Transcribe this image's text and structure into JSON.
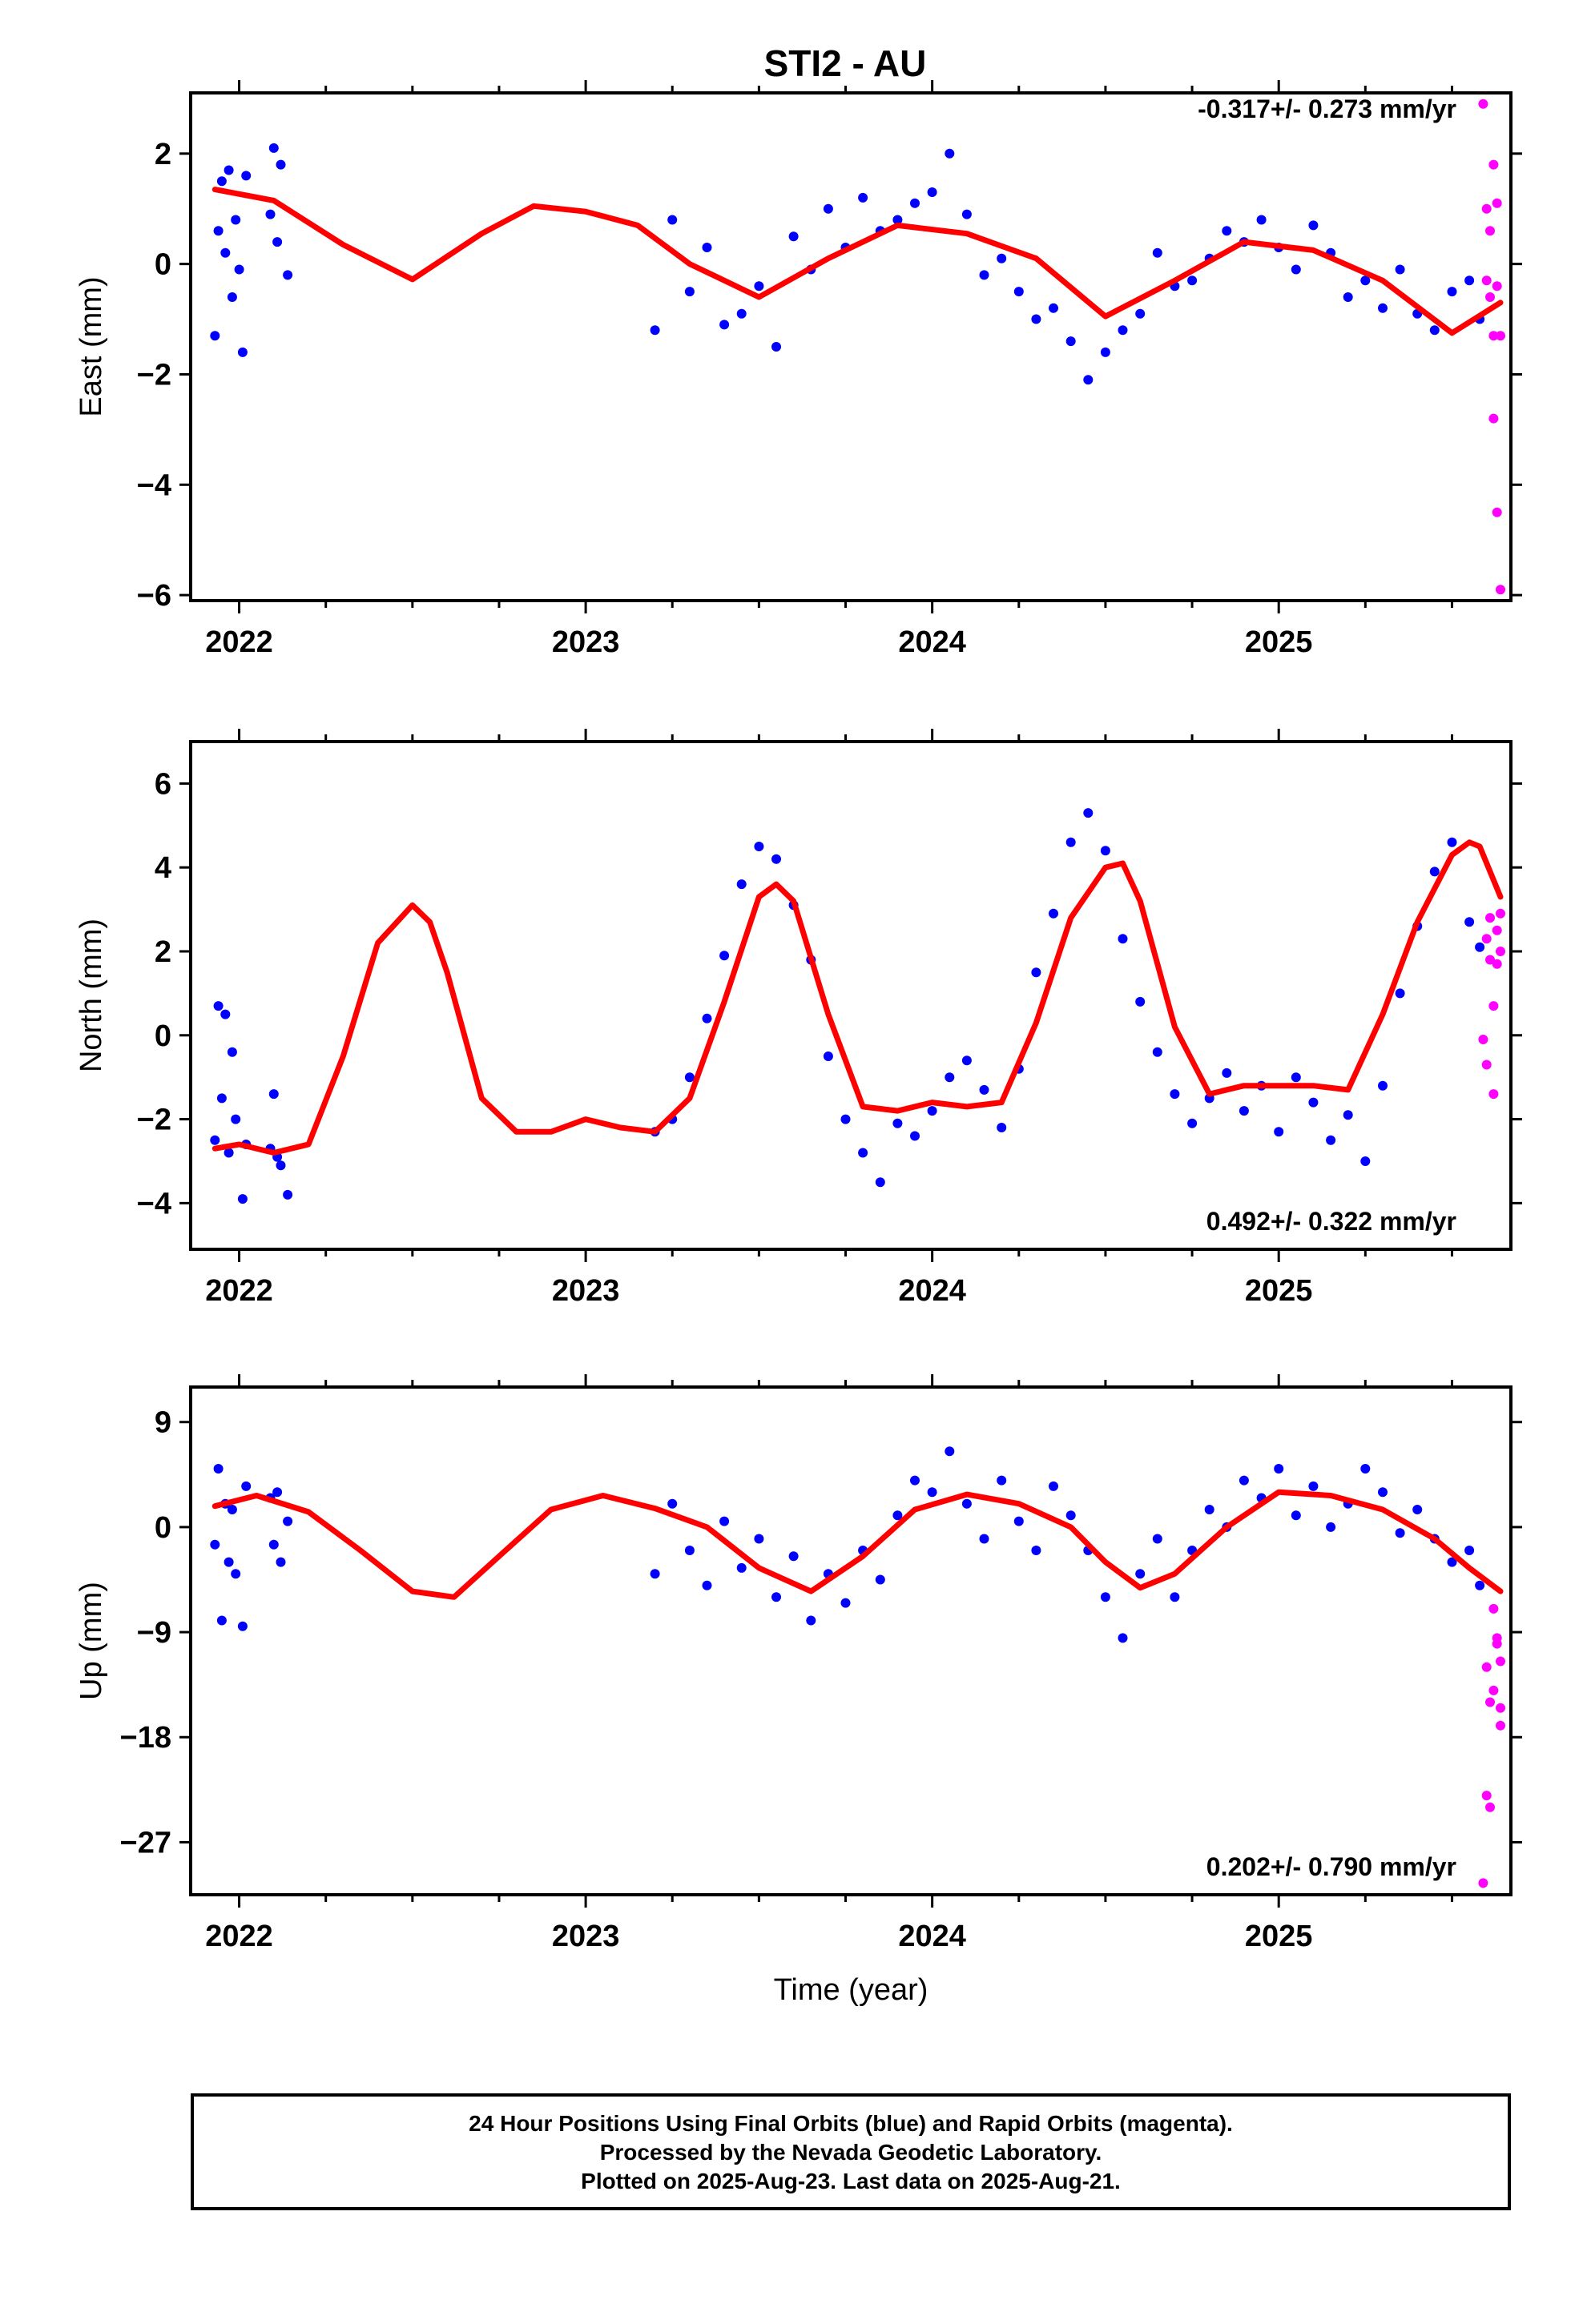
{
  "title": "STI2 - AU",
  "xlabel": "Time (year)",
  "caption": {
    "line1": "24 Hour Positions Using Final Orbits (blue) and Rapid Orbits (magenta).",
    "line2": "Processed by the Nevada Geodetic Laboratory.",
    "line3": "Plotted on 2025-Aug-23. Last data on 2025-Aug-21."
  },
  "colors": {
    "final": "#0000ff",
    "rapid": "#ff00ff",
    "fit": "#ff0000",
    "axes": "#000000"
  },
  "chart_data": [
    {
      "type": "scatter",
      "ylabel": "East (mm)",
      "rate_label": "-0.317+/- 0.273 mm/yr",
      "xlim": [
        2021.86,
        2025.67
      ],
      "ylim": [
        -6.1,
        3.1
      ],
      "yticks": [
        "2",
        "0",
        "−2",
        "−4",
        "−6"
      ],
      "ytick_values": [
        2,
        0,
        -2,
        -4,
        -6
      ],
      "xticks": [
        "2022",
        "2023",
        "2024",
        "2025"
      ],
      "xtick_values": [
        2022,
        2023,
        2024,
        2025
      ],
      "series": [
        {
          "type": "scatter",
          "color": "#0000ff",
          "x": [
            2021.93,
            2021.94,
            2021.95,
            2021.96,
            2021.97,
            2021.98,
            2021.99,
            2022.0,
            2022.01,
            2022.02,
            2022.09,
            2022.1,
            2022.11,
            2022.12,
            2022.14,
            2023.2,
            2023.25,
            2023.3,
            2023.35,
            2023.4,
            2023.45,
            2023.5,
            2023.55,
            2023.6,
            2023.65,
            2023.7,
            2023.75,
            2023.8,
            2023.85,
            2023.9,
            2023.95,
            2024.0,
            2024.05,
            2024.1,
            2024.15,
            2024.2,
            2024.25,
            2024.3,
            2024.35,
            2024.4,
            2024.45,
            2024.5,
            2024.55,
            2024.6,
            2024.65,
            2024.7,
            2024.75,
            2024.8,
            2024.85,
            2024.9,
            2024.95,
            2025.0,
            2025.05,
            2025.1,
            2025.15,
            2025.2,
            2025.25,
            2025.3,
            2025.35,
            2025.4,
            2025.45,
            2025.5,
            2025.55,
            2025.58
          ],
          "y": [
            -1.3,
            0.6,
            1.5,
            0.2,
            1.7,
            -0.6,
            0.8,
            -0.1,
            -1.6,
            1.6,
            0.9,
            2.1,
            0.4,
            1.8,
            -0.2,
            -1.2,
            0.8,
            -0.5,
            0.3,
            -1.1,
            -0.9,
            -0.4,
            -1.5,
            0.5,
            -0.1,
            1.0,
            0.3,
            1.2,
            0.6,
            0.8,
            1.1,
            1.3,
            2.0,
            0.9,
            -0.2,
            0.1,
            -0.5,
            -1.0,
            -0.8,
            -1.4,
            -2.1,
            -1.6,
            -1.2,
            -0.9,
            0.2,
            -0.4,
            -0.3,
            0.1,
            0.6,
            0.4,
            0.8,
            0.3,
            -0.1,
            0.7,
            0.2,
            -0.6,
            -0.3,
            -0.8,
            -0.1,
            -0.9,
            -1.2,
            -0.5,
            -0.3,
            -1.0
          ]
        },
        {
          "type": "scatter",
          "color": "#ff00ff",
          "x": [
            2025.59,
            2025.6,
            2025.6,
            2025.61,
            2025.61,
            2025.62,
            2025.62,
            2025.62,
            2025.63,
            2025.63,
            2025.63,
            2025.64,
            2025.64
          ],
          "y": [
            2.9,
            -0.3,
            1.0,
            0.6,
            -0.6,
            -1.3,
            -2.8,
            1.8,
            -0.4,
            -4.5,
            1.1,
            -5.9,
            -1.3
          ]
        },
        {
          "type": "line",
          "color": "#ff0000",
          "x": [
            2021.93,
            2022.1,
            2022.3,
            2022.5,
            2022.7,
            2022.85,
            2023.0,
            2023.15,
            2023.3,
            2023.5,
            2023.7,
            2023.9,
            2024.1,
            2024.3,
            2024.5,
            2024.7,
            2024.9,
            2025.1,
            2025.3,
            2025.5,
            2025.64
          ],
          "y": [
            1.35,
            1.15,
            0.35,
            -0.28,
            0.55,
            1.05,
            0.95,
            0.7,
            0.0,
            -0.6,
            0.1,
            0.7,
            0.55,
            0.1,
            -0.95,
            -0.3,
            0.4,
            0.25,
            -0.3,
            -1.25,
            -0.7
          ]
        }
      ]
    },
    {
      "type": "scatter",
      "ylabel": "North (mm)",
      "rate_label": "0.492+/- 0.322 mm/yr",
      "xlim": [
        2021.86,
        2025.67
      ],
      "ylim": [
        -5.1,
        7.0
      ],
      "yticks": [
        "6",
        "4",
        "2",
        "0",
        "−2",
        "−4"
      ],
      "ytick_values": [
        6,
        4,
        2,
        0,
        -2,
        -4
      ],
      "xticks": [
        "2022",
        "2023",
        "2024",
        "2025"
      ],
      "xtick_values": [
        2022,
        2023,
        2024,
        2025
      ],
      "series": [
        {
          "type": "scatter",
          "color": "#0000ff",
          "x": [
            2021.93,
            2021.94,
            2021.95,
            2021.96,
            2021.97,
            2021.98,
            2021.99,
            2022.01,
            2022.02,
            2022.09,
            2022.1,
            2022.11,
            2022.12,
            2022.14,
            2023.2,
            2023.25,
            2023.3,
            2023.35,
            2023.4,
            2023.45,
            2023.5,
            2023.55,
            2023.6,
            2023.65,
            2023.7,
            2023.75,
            2023.8,
            2023.85,
            2023.9,
            2023.95,
            2024.0,
            2024.05,
            2024.1,
            2024.15,
            2024.2,
            2024.25,
            2024.3,
            2024.35,
            2024.4,
            2024.45,
            2024.5,
            2024.55,
            2024.6,
            2024.65,
            2024.7,
            2024.75,
            2024.8,
            2024.85,
            2024.9,
            2024.95,
            2025.0,
            2025.05,
            2025.1,
            2025.15,
            2025.2,
            2025.25,
            2025.3,
            2025.35,
            2025.4,
            2025.45,
            2025.5,
            2025.55,
            2025.58
          ],
          "y": [
            -2.5,
            0.7,
            -1.5,
            0.5,
            -2.8,
            -0.4,
            -2.0,
            -3.9,
            -2.6,
            -2.7,
            -1.4,
            -2.9,
            -3.1,
            -3.8,
            -2.3,
            -2.0,
            -1.0,
            0.4,
            1.9,
            3.6,
            4.5,
            4.2,
            3.1,
            1.8,
            -0.5,
            -2.0,
            -2.8,
            -3.5,
            -2.1,
            -2.4,
            -1.8,
            -1.0,
            -0.6,
            -1.3,
            -2.2,
            -0.8,
            1.5,
            2.9,
            4.6,
            5.3,
            4.4,
            2.3,
            0.8,
            -0.4,
            -1.4,
            -2.1,
            -1.5,
            -0.9,
            -1.8,
            -1.2,
            -2.3,
            -1.0,
            -1.6,
            -2.5,
            -1.9,
            -3.0,
            -1.2,
            1.0,
            2.6,
            3.9,
            4.6,
            2.7,
            2.1
          ]
        },
        {
          "type": "scatter",
          "color": "#ff00ff",
          "x": [
            2025.59,
            2025.6,
            2025.6,
            2025.61,
            2025.61,
            2025.62,
            2025.62,
            2025.63,
            2025.63,
            2025.64,
            2025.64
          ],
          "y": [
            -0.1,
            -0.7,
            2.3,
            1.8,
            2.8,
            -1.4,
            0.7,
            2.5,
            1.7,
            2.9,
            2.0
          ]
        },
        {
          "type": "line",
          "color": "#ff0000",
          "x": [
            2021.93,
            2022.0,
            2022.1,
            2022.2,
            2022.3,
            2022.4,
            2022.5,
            2022.55,
            2022.6,
            2022.7,
            2022.8,
            2022.9,
            2023.0,
            2023.1,
            2023.2,
            2023.3,
            2023.4,
            2023.5,
            2023.55,
            2023.6,
            2023.7,
            2023.8,
            2023.9,
            2024.0,
            2024.1,
            2024.2,
            2024.3,
            2024.4,
            2024.5,
            2024.55,
            2024.6,
            2024.7,
            2024.8,
            2024.9,
            2025.0,
            2025.1,
            2025.2,
            2025.3,
            2025.4,
            2025.5,
            2025.55,
            2025.58,
            2025.64
          ],
          "y": [
            -2.7,
            -2.6,
            -2.8,
            -2.6,
            -0.5,
            2.2,
            3.1,
            2.7,
            1.5,
            -1.5,
            -2.3,
            -2.3,
            -2.0,
            -2.2,
            -2.3,
            -1.5,
            0.8,
            3.3,
            3.6,
            3.2,
            0.5,
            -1.7,
            -1.8,
            -1.6,
            -1.7,
            -1.6,
            0.3,
            2.8,
            4.0,
            4.1,
            3.2,
            0.2,
            -1.4,
            -1.2,
            -1.2,
            -1.2,
            -1.3,
            0.5,
            2.7,
            4.3,
            4.6,
            4.5,
            3.3
          ]
        }
      ]
    },
    {
      "type": "scatter",
      "ylabel": "Up (mm)",
      "rate_label": "0.202+/- 0.790 mm/yr",
      "xlim": [
        2021.86,
        2025.67
      ],
      "ylim": [
        -31.5,
        12.0
      ],
      "yticks": [
        "9",
        "0",
        "−9",
        "−18",
        "−27"
      ],
      "ytick_values": [
        9,
        0,
        -9,
        -18,
        -27
      ],
      "xticks": [
        "2022",
        "2023",
        "2024",
        "2025"
      ],
      "xtick_values": [
        2022,
        2023,
        2024,
        2025
      ],
      "series": [
        {
          "type": "scatter",
          "color": "#0000ff",
          "x": [
            2021.93,
            2021.94,
            2021.95,
            2021.96,
            2021.97,
            2021.98,
            2021.99,
            2022.01,
            2022.02,
            2022.09,
            2022.1,
            2022.11,
            2022.12,
            2022.14,
            2023.2,
            2023.25,
            2023.3,
            2023.35,
            2023.4,
            2023.45,
            2023.5,
            2023.55,
            2023.6,
            2023.65,
            2023.7,
            2023.75,
            2023.8,
            2023.85,
            2023.9,
            2023.95,
            2024.0,
            2024.05,
            2024.1,
            2024.15,
            2024.2,
            2024.25,
            2024.3,
            2024.35,
            2024.4,
            2024.45,
            2024.5,
            2024.55,
            2024.6,
            2024.65,
            2024.7,
            2024.75,
            2024.8,
            2024.85,
            2024.9,
            2024.95,
            2025.0,
            2025.05,
            2025.1,
            2025.15,
            2025.2,
            2025.25,
            2025.3,
            2025.35,
            2025.4,
            2025.45,
            2025.5,
            2025.55,
            2025.58
          ],
          "y": [
            -1.5,
            5.0,
            -8.0,
            2.0,
            -3.0,
            1.5,
            -4.0,
            -8.5,
            3.5,
            2.5,
            -1.5,
            3.0,
            -3.0,
            0.5,
            -4.0,
            2.0,
            -2.0,
            -5.0,
            0.5,
            -3.5,
            -1.0,
            -6.0,
            -2.5,
            -8.0,
            -4.0,
            -6.5,
            -2.0,
            -4.5,
            1.0,
            4.0,
            3.0,
            6.5,
            2.0,
            -1.0,
            4.0,
            0.5,
            -2.0,
            3.5,
            1.0,
            -2.0,
            -6.0,
            -9.5,
            -4.0,
            -1.0,
            -6.0,
            -2.0,
            1.5,
            0.0,
            4.0,
            2.5,
            5.0,
            1.0,
            3.5,
            0.0,
            2.0,
            5.0,
            3.0,
            -0.5,
            1.5,
            -1.0,
            -3.0,
            -2.0,
            -5.0
          ]
        },
        {
          "type": "scatter",
          "color": "#ff00ff",
          "x": [
            2025.59,
            2025.6,
            2025.6,
            2025.61,
            2025.61,
            2025.62,
            2025.62,
            2025.63,
            2025.63,
            2025.64,
            2025.64,
            2025.64
          ],
          "y": [
            -30.5,
            -23.0,
            -12.0,
            -15.0,
            -24.0,
            -7.0,
            -14.0,
            -10.0,
            -9.5,
            -15.5,
            -11.5,
            -17.0
          ]
        },
        {
          "type": "line",
          "color": "#ff0000",
          "x": [
            2021.93,
            2022.05,
            2022.2,
            2022.35,
            2022.5,
            2022.62,
            2022.75,
            2022.9,
            2023.05,
            2023.2,
            2023.35,
            2023.5,
            2023.65,
            2023.8,
            2023.95,
            2024.1,
            2024.25,
            2024.4,
            2024.5,
            2024.6,
            2024.7,
            2024.85,
            2025.0,
            2025.15,
            2025.3,
            2025.45,
            2025.55,
            2025.64
          ],
          "y": [
            1.8,
            2.7,
            1.3,
            -2.0,
            -5.5,
            -6.0,
            -2.5,
            1.5,
            2.7,
            1.6,
            0.0,
            -3.5,
            -5.5,
            -2.5,
            1.5,
            2.8,
            2.0,
            0.0,
            -3.0,
            -5.2,
            -4.0,
            0.0,
            3.0,
            2.7,
            1.5,
            -1.0,
            -3.5,
            -5.5
          ]
        }
      ]
    }
  ]
}
